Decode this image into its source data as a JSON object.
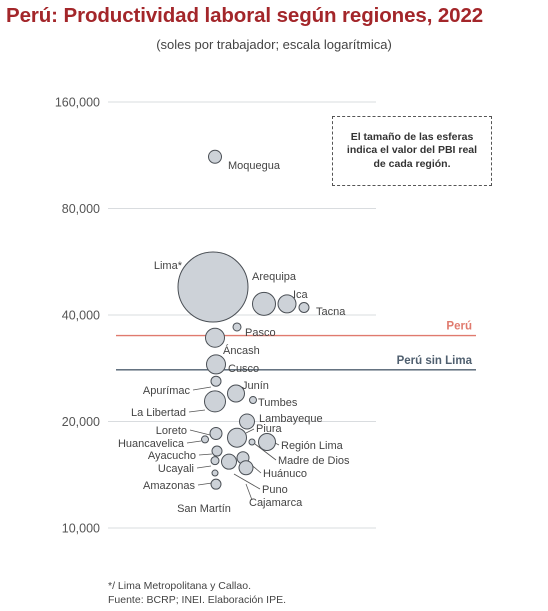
{
  "title": "Perú: Productividad laboral según regiones, 2022",
  "subtitle": "(soles por trabajador; escala logarítmica)",
  "size_note": "El tamaño de las esferas indica el valor del PBI real de cada región.",
  "footer": {
    "note": "*/ Lima Metropolitana y Callao.",
    "source": "Fuente: BCRP; INEI. Elaboración IPE."
  },
  "colors": {
    "title": "#a3262a",
    "peru_line": "#e07a6e",
    "peru_sin_lima_line": "#4f5f6f",
    "bubble_fill": "#cdd2d8",
    "bubble_stroke": "#4a4f55"
  },
  "chart_data": {
    "type": "scatter",
    "title": "Perú: Productividad laboral según regiones, 2022",
    "subtitle": "(soles por trabajador; escala logarítmica)",
    "y_scale": "log",
    "ylim": [
      10000,
      160000
    ],
    "yticks": [
      10000,
      20000,
      40000,
      80000,
      160000
    ],
    "ytick_labels": [
      "10,000",
      "20,000",
      "40,000",
      "80,000",
      "160,000"
    ],
    "grid": true,
    "reference_lines": [
      {
        "label": "Perú",
        "value": 35000,
        "color": "#e07a6e"
      },
      {
        "label": "Perú sin Lima",
        "value": 28000,
        "color": "#4f5f6f"
      }
    ],
    "points": [
      {
        "name": "Moquegua",
        "value": 112000,
        "size": 6
      },
      {
        "name": "Lima*",
        "value": 48000,
        "size": 34
      },
      {
        "name": "Arequipa",
        "value": 43000,
        "size": 11
      },
      {
        "name": "Ica",
        "value": 43000,
        "size": 9
      },
      {
        "name": "Tacna",
        "value": 42000,
        "size": 5
      },
      {
        "name": "Pasco",
        "value": 37000,
        "size": 4
      },
      {
        "name": "Áncash",
        "value": 34500,
        "size": 9
      },
      {
        "name": "Cusco",
        "value": 29000,
        "size": 9
      },
      {
        "name": "Apurímac",
        "value": 26000,
        "size": 5
      },
      {
        "name": "Junín",
        "value": 24000,
        "size": 8
      },
      {
        "name": "Tumbes",
        "value": 23000,
        "size": 3.5
      },
      {
        "name": "La Libertad",
        "value": 22800,
        "size": 10
      },
      {
        "name": "Lambayeque",
        "value": 20000,
        "size": 7
      },
      {
        "name": "Loreto",
        "value": 18500,
        "size": 6
      },
      {
        "name": "Piura",
        "value": 18000,
        "size": 9
      },
      {
        "name": "Huancavelica",
        "value": 17800,
        "size": 3.5
      },
      {
        "name": "Región Lima",
        "value": 17500,
        "size": 8
      },
      {
        "name": "Madre de Dios",
        "value": 17500,
        "size": 3
      },
      {
        "name": "Ayacucho",
        "value": 16500,
        "size": 5
      },
      {
        "name": "Huánuco",
        "value": 15800,
        "size": 6
      },
      {
        "name": "Ucayali",
        "value": 15500,
        "size": 4
      },
      {
        "name": "Puno",
        "value": 15400,
        "size": 7
      },
      {
        "name": "Cajamarca",
        "value": 14800,
        "size": 7
      },
      {
        "name": "Amazonas",
        "value": 14300,
        "size": 3
      },
      {
        "name": "San Martín",
        "value": 13300,
        "size": 5
      }
    ]
  }
}
